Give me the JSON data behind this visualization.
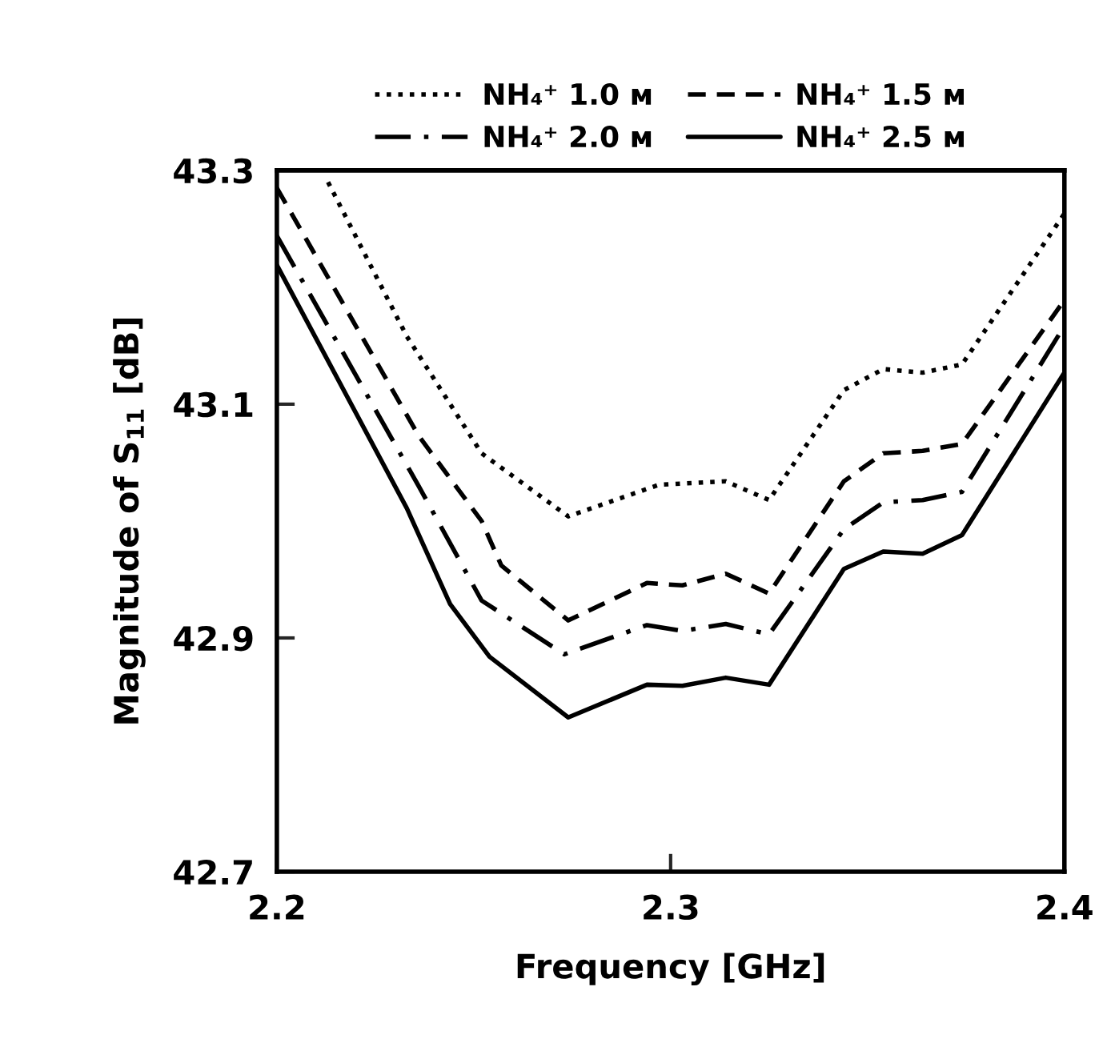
{
  "chart_data": {
    "type": "line",
    "xlabel": "Frequency [GHz]",
    "ylabel": "Magnitude of S$_{11}$ [dB]",
    "xlim": [
      2.2,
      2.4
    ],
    "xticks": [
      {
        "value": 2.2,
        "label": "2.2"
      },
      {
        "value": 2.3,
        "label": "2.3"
      },
      {
        "value": 2.4,
        "label": "2.4"
      }
    ],
    "ylim": [
      42.7,
      43.3
    ],
    "yticks": [
      {
        "value": 42.7,
        "label": "42.7"
      },
      {
        "value": 42.9,
        "label": "42.9"
      },
      {
        "value": 43.1,
        "label": "43.1"
      },
      {
        "value": 43.3,
        "label": "43.3"
      }
    ],
    "grid": false,
    "legend": "top",
    "marker": "none",
    "series": [
      {
        "name": "NH₄⁺ 1.0 ᴍ",
        "color": "#000000",
        "line_style": "dotted",
        "x": [
          2.213,
          2.233,
          2.252,
          2.274,
          2.297,
          2.314,
          2.325,
          2.344,
          2.354,
          2.364,
          2.374,
          2.4
        ],
        "values": [
          43.29,
          43.158,
          43.058,
          43.004,
          43.031,
          43.034,
          43.018,
          43.112,
          43.13,
          43.127,
          43.134,
          43.263
        ]
      },
      {
        "name": "NH₄⁺ 1.5 ᴍ",
        "color": "#000000",
        "line_style": "dashed",
        "x": [
          2.2,
          2.236,
          2.252,
          2.257,
          2.274,
          2.294,
          2.303,
          2.314,
          2.325,
          2.344,
          2.354,
          2.364,
          2.374,
          2.4
        ],
        "values": [
          43.285,
          43.073,
          43.0,
          42.962,
          42.915,
          42.947,
          42.945,
          42.955,
          42.938,
          43.034,
          43.058,
          43.06,
          43.066,
          43.189
        ]
      },
      {
        "name": "NH₄⁺ 2.0 ᴍ",
        "color": "#000000",
        "line_style": "dashdot",
        "x": [
          2.2,
          2.236,
          2.252,
          2.273,
          2.294,
          2.303,
          2.314,
          2.325,
          2.344,
          2.354,
          2.364,
          2.374,
          2.4
        ],
        "values": [
          43.244,
          43.03,
          42.932,
          42.886,
          42.911,
          42.906,
          42.912,
          42.903,
          42.993,
          43.016,
          43.018,
          43.025,
          43.167
        ]
      },
      {
        "name": "NH₄⁺ 2.5 ᴍ",
        "color": "#000000",
        "line_style": "solid",
        "x": [
          2.2,
          2.233,
          2.244,
          2.254,
          2.274,
          2.294,
          2.303,
          2.314,
          2.325,
          2.344,
          2.354,
          2.364,
          2.374,
          2.4
        ],
        "values": [
          43.219,
          43.011,
          42.929,
          42.884,
          42.832,
          42.86,
          42.859,
          42.866,
          42.86,
          42.959,
          42.974,
          42.972,
          42.988,
          43.127
        ]
      }
    ]
  }
}
